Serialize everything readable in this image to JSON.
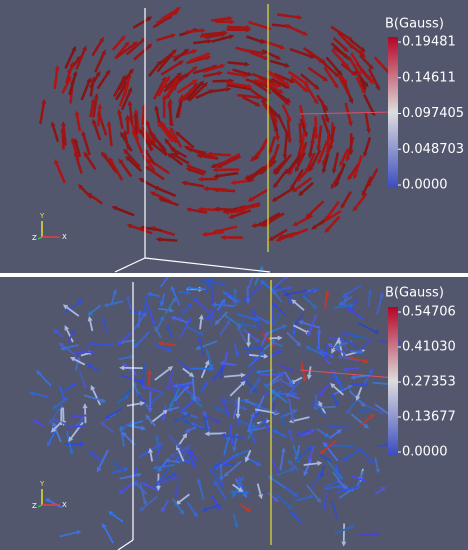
{
  "panels": [
    {
      "legend": {
        "title": "B(Gauss)",
        "ticks": [
          "0.19481",
          "0.14611",
          "0.097405",
          "0.048703",
          "0.0000"
        ]
      },
      "axes": {
        "y": "Y",
        "z": "Z",
        "x": "X"
      }
    },
    {
      "legend": {
        "title": "B(Gauss)",
        "ticks": [
          "0.54706",
          "0.41030",
          "0.27353",
          "0.13677",
          "0.0000"
        ]
      },
      "axes": {
        "y": "Y",
        "z": "Z",
        "x": "X"
      }
    }
  ]
}
